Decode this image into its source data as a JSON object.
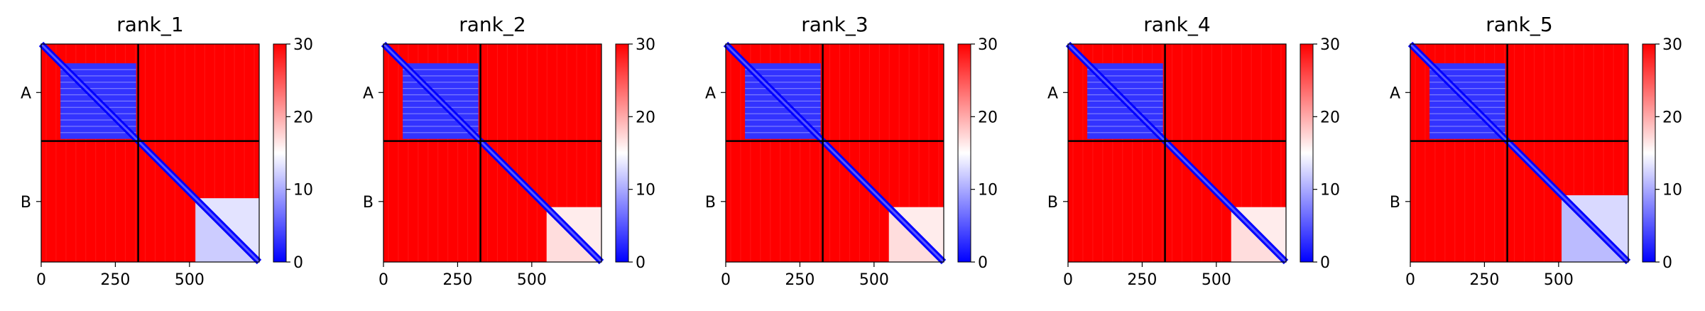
{
  "chart_data": [
    {
      "type": "heatmap",
      "title": "rank_1",
      "xticks": [
        0,
        250,
        500
      ],
      "yticks": [
        "A",
        "B"
      ],
      "colorbar": {
        "min": 0,
        "max": 30,
        "ticks": [
          0,
          10,
          20,
          30
        ],
        "colors": [
          "#0000ff",
          "#ffffff",
          "#ff0000"
        ]
      },
      "chains": [
        {
          "name": "A",
          "start": 0,
          "end": 327
        },
        {
          "name": "B",
          "start": 327,
          "end": 735
        }
      ],
      "low_blocks": [
        {
          "from": 65,
          "to": 320,
          "value": 3
        },
        {
          "from": 520,
          "to": 735,
          "value": 12
        }
      ]
    },
    {
      "type": "heatmap",
      "title": "rank_2",
      "xticks": [
        0,
        250,
        500
      ],
      "yticks": [
        "A",
        "B"
      ],
      "colorbar": {
        "min": 0,
        "max": 30,
        "ticks": [
          0,
          10,
          20,
          30
        ],
        "colors": [
          "#0000ff",
          "#ffffff",
          "#ff0000"
        ]
      },
      "chains": [
        {
          "name": "A",
          "start": 0,
          "end": 327
        },
        {
          "name": "B",
          "start": 327,
          "end": 735
        }
      ],
      "low_blocks": [
        {
          "from": 65,
          "to": 320,
          "value": 3
        },
        {
          "from": 550,
          "to": 735,
          "value": 17
        }
      ]
    },
    {
      "type": "heatmap",
      "title": "rank_3",
      "xticks": [
        0,
        250,
        500
      ],
      "yticks": [
        "A",
        "B"
      ],
      "colorbar": {
        "min": 0,
        "max": 30,
        "ticks": [
          0,
          10,
          20,
          30
        ],
        "colors": [
          "#0000ff",
          "#ffffff",
          "#ff0000"
        ]
      },
      "chains": [
        {
          "name": "A",
          "start": 0,
          "end": 327
        },
        {
          "name": "B",
          "start": 327,
          "end": 735
        }
      ],
      "low_blocks": [
        {
          "from": 65,
          "to": 320,
          "value": 3
        },
        {
          "from": 550,
          "to": 735,
          "value": 17
        }
      ]
    },
    {
      "type": "heatmap",
      "title": "rank_4",
      "xticks": [
        0,
        250,
        500
      ],
      "yticks": [
        "A",
        "B"
      ],
      "colorbar": {
        "min": 0,
        "max": 30,
        "ticks": [
          0,
          10,
          20,
          30
        ],
        "colors": [
          "#0000ff",
          "#ffffff",
          "#ff0000"
        ]
      },
      "chains": [
        {
          "name": "A",
          "start": 0,
          "end": 327
        },
        {
          "name": "B",
          "start": 327,
          "end": 735
        }
      ],
      "low_blocks": [
        {
          "from": 65,
          "to": 320,
          "value": 3
        },
        {
          "from": 550,
          "to": 735,
          "value": 17
        }
      ]
    },
    {
      "type": "heatmap",
      "title": "rank_5",
      "xticks": [
        0,
        250,
        500
      ],
      "yticks": [
        "A",
        "B"
      ],
      "colorbar": {
        "min": 0,
        "max": 30,
        "ticks": [
          0,
          10,
          20,
          30
        ],
        "colors": [
          "#0000ff",
          "#ffffff",
          "#ff0000"
        ]
      },
      "chains": [
        {
          "name": "A",
          "start": 0,
          "end": 327
        },
        {
          "name": "B",
          "start": 327,
          "end": 735
        }
      ],
      "low_blocks": [
        {
          "from": 65,
          "to": 320,
          "value": 3
        },
        {
          "from": 510,
          "to": 735,
          "value": 11
        }
      ]
    }
  ]
}
